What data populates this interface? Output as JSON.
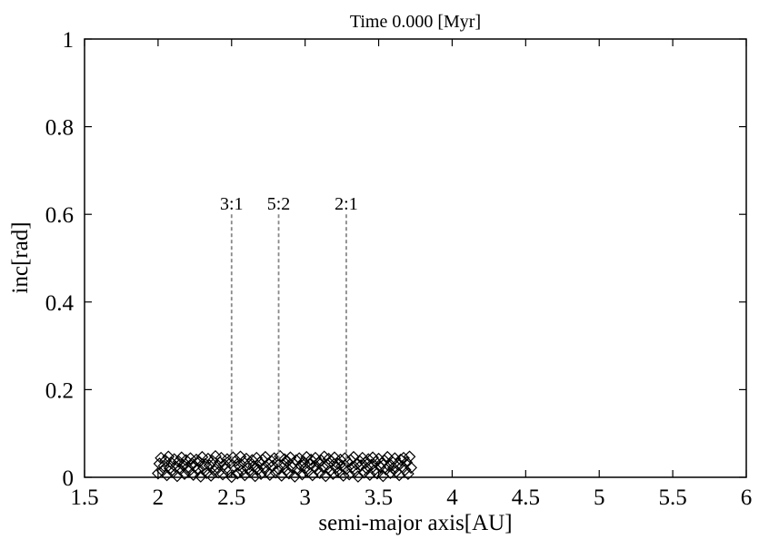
{
  "chart_data": {
    "type": "scatter",
    "title": "Time 0.000 [Myr]",
    "xlabel": "semi-major axis[AU]",
    "ylabel": "inc[rad]",
    "xlim": [
      1.5,
      6
    ],
    "ylim": [
      0,
      1
    ],
    "xticks": [
      1.5,
      2,
      2.5,
      3,
      3.5,
      4,
      4.5,
      5,
      5.5,
      6
    ],
    "xtick_labels": [
      "1.5",
      "2",
      "2.5",
      "3",
      "3.5",
      "4",
      "4.5",
      "5",
      "5.5",
      "6"
    ],
    "yticks": [
      0,
      0.2,
      0.4,
      0.6,
      0.8,
      1
    ],
    "ytick_labels": [
      "0",
      "0.2",
      "0.4",
      "0.6",
      "0.8",
      "1"
    ],
    "grid": false,
    "marker": "diamond",
    "marker_color": "#000000",
    "resonances": [
      {
        "label": "3:1",
        "x": 2.5,
        "y_top": 0.6
      },
      {
        "label": "5:2",
        "x": 2.82,
        "y_top": 0.6
      },
      {
        "label": "2:1",
        "x": 3.28,
        "y_top": 0.6
      }
    ],
    "resonance_color": "#888888",
    "points": [
      [
        2.0,
        0.009
      ],
      [
        2.01,
        0.031
      ],
      [
        2.02,
        0.044
      ],
      [
        2.03,
        0.015
      ],
      [
        2.04,
        0.026
      ],
      [
        2.05,
        0.038
      ],
      [
        2.06,
        0.005
      ],
      [
        2.07,
        0.047
      ],
      [
        2.08,
        0.02
      ],
      [
        2.09,
        0.033
      ],
      [
        2.1,
        0.012
      ],
      [
        2.11,
        0.041
      ],
      [
        2.12,
        0.024
      ],
      [
        2.13,
        0.003
      ],
      [
        2.14,
        0.036
      ],
      [
        2.15,
        0.018
      ],
      [
        2.16,
        0.045
      ],
      [
        2.17,
        0.028
      ],
      [
        2.18,
        0.008
      ],
      [
        2.19,
        0.039
      ],
      [
        2.2,
        0.022
      ],
      [
        2.21,
        0.014
      ],
      [
        2.22,
        0.043
      ],
      [
        2.23,
        0.031
      ],
      [
        2.24,
        0.006
      ],
      [
        2.25,
        0.025
      ],
      [
        2.26,
        0.04
      ],
      [
        2.27,
        0.017
      ],
      [
        2.28,
        0.035
      ],
      [
        2.29,
        0.002
      ],
      [
        2.3,
        0.046
      ],
      [
        2.31,
        0.021
      ],
      [
        2.32,
        0.03
      ],
      [
        2.33,
        0.01
      ],
      [
        2.34,
        0.042
      ],
      [
        2.35,
        0.027
      ],
      [
        2.36,
        0.004
      ],
      [
        2.37,
        0.037
      ],
      [
        2.38,
        0.016
      ],
      [
        2.39,
        0.048
      ],
      [
        2.4,
        0.023
      ],
      [
        2.41,
        0.011
      ],
      [
        2.42,
        0.034
      ],
      [
        2.43,
        0.044
      ],
      [
        2.44,
        0.007
      ],
      [
        2.45,
        0.029
      ],
      [
        2.46,
        0.019
      ],
      [
        2.47,
        0.041
      ],
      [
        2.48,
        0.013
      ],
      [
        2.49,
        0.032
      ],
      [
        2.5,
        0.001
      ],
      [
        2.51,
        0.045
      ],
      [
        2.52,
        0.024
      ],
      [
        2.53,
        0.038
      ],
      [
        2.54,
        0.009
      ],
      [
        2.55,
        0.027
      ],
      [
        2.56,
        0.047
      ],
      [
        2.57,
        0.015
      ],
      [
        2.58,
        0.035
      ],
      [
        2.59,
        0.005
      ],
      [
        2.6,
        0.042
      ],
      [
        2.61,
        0.02
      ],
      [
        2.62,
        0.03
      ],
      [
        2.63,
        0.012
      ],
      [
        2.64,
        0.039
      ],
      [
        2.65,
        0.025
      ],
      [
        2.66,
        0.003
      ],
      [
        2.67,
        0.044
      ],
      [
        2.68,
        0.018
      ],
      [
        2.69,
        0.033
      ],
      [
        2.7,
        0.008
      ],
      [
        2.71,
        0.04
      ],
      [
        2.72,
        0.022
      ],
      [
        2.73,
        0.046
      ],
      [
        2.74,
        0.014
      ],
      [
        2.75,
        0.031
      ],
      [
        2.76,
        0.006
      ],
      [
        2.77,
        0.037
      ],
      [
        2.78,
        0.026
      ],
      [
        2.79,
        0.043
      ],
      [
        2.8,
        0.011
      ],
      [
        2.81,
        0.034
      ],
      [
        2.82,
        0.019
      ],
      [
        2.83,
        0.048
      ],
      [
        2.84,
        0.004
      ],
      [
        2.85,
        0.028
      ],
      [
        2.86,
        0.041
      ],
      [
        2.87,
        0.016
      ],
      [
        2.88,
        0.036
      ],
      [
        2.89,
        0.009
      ],
      [
        2.9,
        0.045
      ],
      [
        2.91,
        0.023
      ],
      [
        2.92,
        0.032
      ],
      [
        2.93,
        0.002
      ],
      [
        2.94,
        0.039
      ],
      [
        2.95,
        0.017
      ],
      [
        2.96,
        0.043
      ],
      [
        2.97,
        0.027
      ],
      [
        2.98,
        0.007
      ],
      [
        2.99,
        0.035
      ],
      [
        3.0,
        0.021
      ],
      [
        3.01,
        0.046
      ],
      [
        3.02,
        0.013
      ],
      [
        3.03,
        0.03
      ],
      [
        3.04,
        0.04
      ],
      [
        3.05,
        0.005
      ],
      [
        3.06,
        0.025
      ],
      [
        3.07,
        0.044
      ],
      [
        3.08,
        0.018
      ],
      [
        3.09,
        0.033
      ],
      [
        3.1,
        0.01
      ],
      [
        3.11,
        0.038
      ],
      [
        3.12,
        0.024
      ],
      [
        3.13,
        0.047
      ],
      [
        3.14,
        0.003
      ],
      [
        3.15,
        0.029
      ],
      [
        3.16,
        0.042
      ],
      [
        3.17,
        0.015
      ],
      [
        3.18,
        0.036
      ],
      [
        3.19,
        0.008
      ],
      [
        3.2,
        0.045
      ],
      [
        3.21,
        0.022
      ],
      [
        3.22,
        0.031
      ],
      [
        3.23,
        0.012
      ],
      [
        3.24,
        0.04
      ],
      [
        3.25,
        0.026
      ],
      [
        3.26,
        0.004
      ],
      [
        3.27,
        0.043
      ],
      [
        3.28,
        0.019
      ],
      [
        3.29,
        0.034
      ],
      [
        3.3,
        0.007
      ],
      [
        3.31,
        0.039
      ],
      [
        3.32,
        0.023
      ],
      [
        3.33,
        0.046
      ],
      [
        3.34,
        0.014
      ],
      [
        3.35,
        0.03
      ],
      [
        3.36,
        0.002
      ],
      [
        3.37,
        0.037
      ],
      [
        3.38,
        0.027
      ],
      [
        3.39,
        0.044
      ],
      [
        3.4,
        0.011
      ],
      [
        3.41,
        0.033
      ],
      [
        3.42,
        0.02
      ],
      [
        3.43,
        0.041
      ],
      [
        3.44,
        0.006
      ],
      [
        3.45,
        0.028
      ],
      [
        3.46,
        0.045
      ],
      [
        3.47,
        0.016
      ],
      [
        3.48,
        0.035
      ],
      [
        3.49,
        0.009
      ],
      [
        3.5,
        0.042
      ],
      [
        3.51,
        0.024
      ],
      [
        3.52,
        0.032
      ],
      [
        3.53,
        0.003
      ],
      [
        3.54,
        0.038
      ],
      [
        3.55,
        0.018
      ],
      [
        3.56,
        0.046
      ],
      [
        3.57,
        0.026
      ],
      [
        3.58,
        0.01
      ],
      [
        3.59,
        0.036
      ],
      [
        3.6,
        0.021
      ],
      [
        3.61,
        0.043
      ],
      [
        3.62,
        0.013
      ],
      [
        3.63,
        0.03
      ],
      [
        3.64,
        0.005
      ],
      [
        3.65,
        0.04
      ],
      [
        3.66,
        0.025
      ],
      [
        3.67,
        0.044
      ],
      [
        3.68,
        0.017
      ],
      [
        3.69,
        0.034
      ],
      [
        3.7,
        0.008
      ],
      [
        3.71,
        0.047
      ],
      [
        3.72,
        0.022
      ]
    ]
  }
}
